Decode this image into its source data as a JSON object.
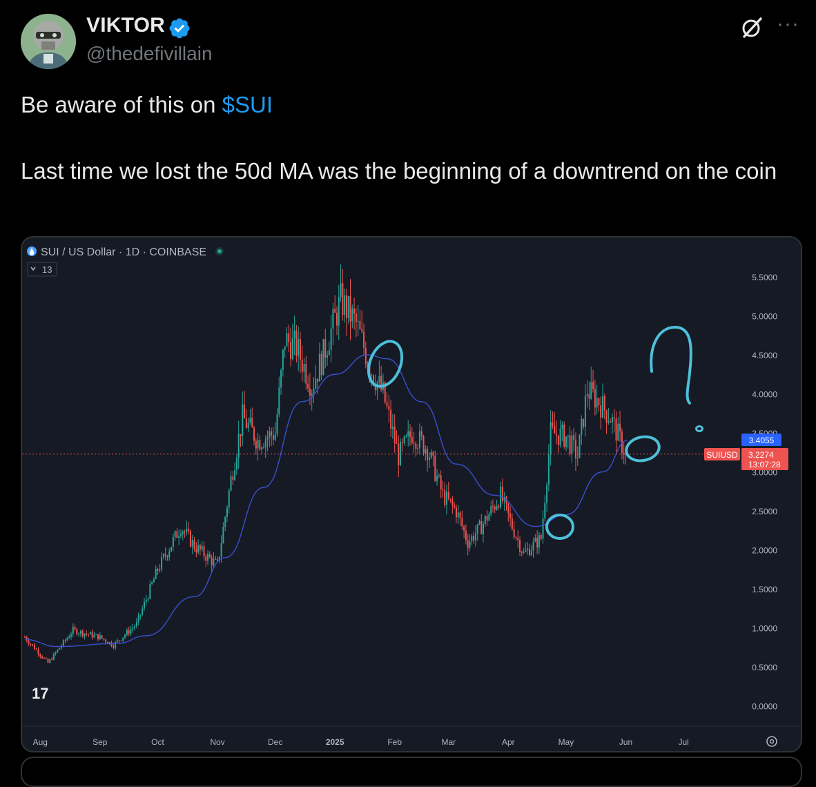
{
  "tweet": {
    "display_name": "VIKTOR",
    "handle": "@thedefivillain",
    "verified_icon": "verified-badge-icon",
    "text_prefix": "Be aware of this on ",
    "cashtag": "$SUI",
    "text_line2": "Last time we lost the 50d MA was the beginning of a downtrend on the coin",
    "more_label": "···"
  },
  "colors": {
    "background": "#000000",
    "cashtag": "#1d9bf0",
    "verified": "#1d9bf0",
    "chart_bg": "#161a25",
    "up_candle": "#26a69a",
    "down_candle": "#ef5350",
    "ma_line": "#3a4fd0",
    "annotation": "#4dbfd9"
  },
  "chart_data": {
    "type": "candlestick",
    "title": "SUI / US Dollar · 1D · COINBASE",
    "indicator_badge": "13",
    "logo": "17",
    "x_ticks": [
      "Aug",
      "Sep",
      "Oct",
      "Nov",
      "Dec",
      "2025",
      "Feb",
      "Mar",
      "Apr",
      "May",
      "Jun",
      "Jul"
    ],
    "y_ticks": [
      "5.5000",
      "5.0000",
      "4.5000",
      "4.0000",
      "3.5000",
      "3.0000",
      "2.5000",
      "2.0000",
      "1.5000",
      "1.0000",
      "0.5000",
      "0.0000"
    ],
    "ylim": [
      0,
      5.5
    ],
    "close_series": [
      {
        "date": "2024-07-24",
        "value": 0.88
      },
      {
        "date": "2024-08-05",
        "value": 0.55
      },
      {
        "date": "2024-08-18",
        "value": 0.97
      },
      {
        "date": "2024-09-01",
        "value": 0.88
      },
      {
        "date": "2024-09-08",
        "value": 0.78
      },
      {
        "date": "2024-09-20",
        "value": 1.05
      },
      {
        "date": "2024-10-01",
        "value": 1.75
      },
      {
        "date": "2024-10-13",
        "value": 2.3
      },
      {
        "date": "2024-10-20",
        "value": 2.05
      },
      {
        "date": "2024-11-01",
        "value": 1.8
      },
      {
        "date": "2024-11-08",
        "value": 2.9
      },
      {
        "date": "2024-11-14",
        "value": 3.7
      },
      {
        "date": "2024-11-22",
        "value": 3.4
      },
      {
        "date": "2024-12-01",
        "value": 3.5
      },
      {
        "date": "2024-12-06",
        "value": 4.7
      },
      {
        "date": "2024-12-12",
        "value": 4.6
      },
      {
        "date": "2024-12-20",
        "value": 4.1
      },
      {
        "date": "2024-12-26",
        "value": 4.5
      },
      {
        "date": "2025-01-04",
        "value": 5.2
      },
      {
        "date": "2025-01-12",
        "value": 4.9
      },
      {
        "date": "2025-01-20",
        "value": 4.3
      },
      {
        "date": "2025-01-26",
        "value": 4.0
      },
      {
        "date": "2025-02-03",
        "value": 3.2
      },
      {
        "date": "2025-02-10",
        "value": 3.5
      },
      {
        "date": "2025-02-18",
        "value": 3.3
      },
      {
        "date": "2025-02-26",
        "value": 2.7
      },
      {
        "date": "2025-03-05",
        "value": 2.5
      },
      {
        "date": "2025-03-11",
        "value": 2.1
      },
      {
        "date": "2025-03-18",
        "value": 2.3
      },
      {
        "date": "2025-03-28",
        "value": 2.7
      },
      {
        "date": "2025-04-03",
        "value": 2.3
      },
      {
        "date": "2025-04-09",
        "value": 1.95
      },
      {
        "date": "2025-04-18",
        "value": 2.15
      },
      {
        "date": "2025-04-23",
        "value": 3.5
      },
      {
        "date": "2025-05-01",
        "value": 3.45
      },
      {
        "date": "2025-05-07",
        "value": 3.2
      },
      {
        "date": "2025-05-12",
        "value": 4.05
      },
      {
        "date": "2025-05-18",
        "value": 3.9
      },
      {
        "date": "2025-05-24",
        "value": 3.7
      },
      {
        "date": "2025-05-30",
        "value": 3.35
      },
      {
        "date": "2025-06-01",
        "value": 3.2274
      }
    ],
    "ma_series": {
      "name": "50d MA",
      "points": [
        {
          "date": "2024-07-24",
          "value": 0.85
        },
        {
          "date": "2024-08-10",
          "value": 0.76
        },
        {
          "date": "2024-09-10",
          "value": 0.8
        },
        {
          "date": "2024-09-25",
          "value": 0.9
        },
        {
          "date": "2024-10-20",
          "value": 1.4
        },
        {
          "date": "2024-11-05",
          "value": 1.9
        },
        {
          "date": "2024-11-25",
          "value": 2.8
        },
        {
          "date": "2024-12-15",
          "value": 3.9
        },
        {
          "date": "2025-01-01",
          "value": 4.25
        },
        {
          "date": "2025-01-18",
          "value": 4.5
        },
        {
          "date": "2025-01-28",
          "value": 4.45
        },
        {
          "date": "2025-02-15",
          "value": 3.9
        },
        {
          "date": "2025-03-05",
          "value": 3.1
        },
        {
          "date": "2025-03-25",
          "value": 2.7
        },
        {
          "date": "2025-04-15",
          "value": 2.3
        },
        {
          "date": "2025-05-01",
          "value": 2.45
        },
        {
          "date": "2025-05-20",
          "value": 3.0
        },
        {
          "date": "2025-06-02",
          "value": 3.4055
        }
      ]
    },
    "price_labels": {
      "ma_value": "3.4055",
      "symbol": "SUIUSD",
      "last_price": "3.2274",
      "countdown": "13:07:28"
    },
    "annotations": [
      "circle",
      "circle",
      "circle",
      "question-mark"
    ],
    "grid": false,
    "legend": "top-left"
  }
}
